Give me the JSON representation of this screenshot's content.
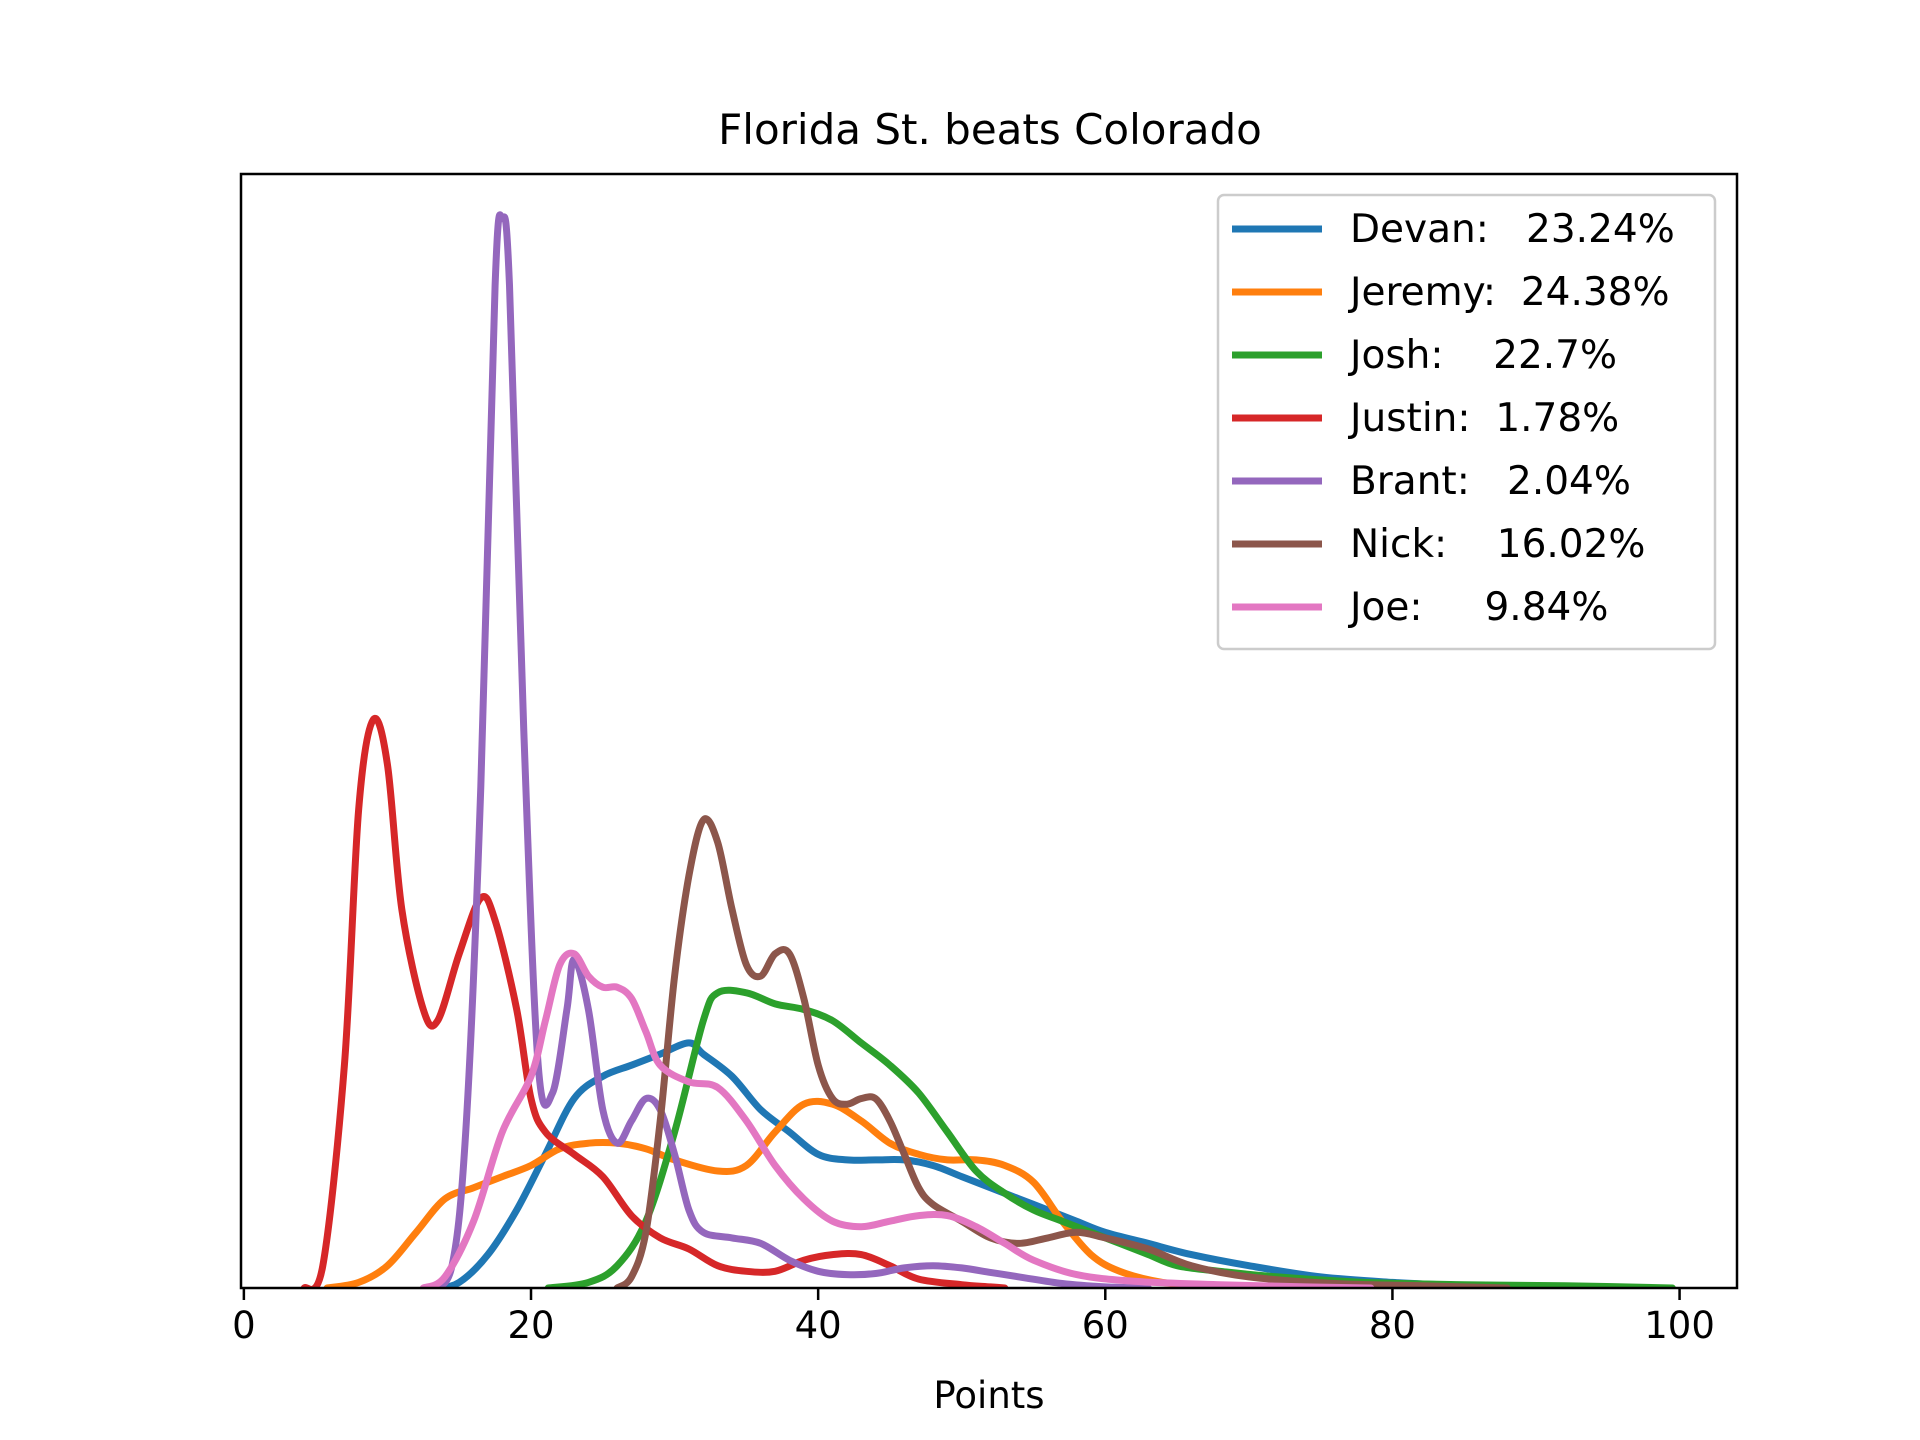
{
  "chart_data": {
    "type": "line",
    "title": "Florida St. beats Colorado",
    "xlabel": "Points",
    "ylabel": "",
    "xlim": [
      -0.2,
      104
    ],
    "ylim": [
      0,
      1
    ],
    "xticks": [
      0,
      20,
      40,
      60,
      80,
      100
    ],
    "yticks_visible": false,
    "grid": false,
    "legend_position": "top-right",
    "series": [
      {
        "name": "Devan:   23.24%",
        "color": "#1f77b4",
        "points": [
          [
            13.5,
            0
          ],
          [
            15,
            0.005
          ],
          [
            17,
            0.03
          ],
          [
            19,
            0.07
          ],
          [
            21,
            0.12
          ],
          [
            23,
            0.17
          ],
          [
            25,
            0.19
          ],
          [
            27,
            0.2
          ],
          [
            29,
            0.21
          ],
          [
            31,
            0.22
          ],
          [
            32,
            0.21
          ],
          [
            34,
            0.19
          ],
          [
            36,
            0.16
          ],
          [
            38,
            0.14
          ],
          [
            40,
            0.12
          ],
          [
            42,
            0.115
          ],
          [
            44,
            0.115
          ],
          [
            46,
            0.115
          ],
          [
            48,
            0.11
          ],
          [
            50,
            0.1
          ],
          [
            52,
            0.09
          ],
          [
            54,
            0.08
          ],
          [
            56,
            0.07
          ],
          [
            58,
            0.06
          ],
          [
            60,
            0.05
          ],
          [
            63,
            0.04
          ],
          [
            66,
            0.03
          ],
          [
            70,
            0.02
          ],
          [
            75,
            0.01
          ],
          [
            80,
            0.005
          ],
          [
            85,
            0.002
          ],
          [
            89,
            0
          ]
        ]
      },
      {
        "name": "Jeremy:  24.38%",
        "color": "#ff7f0e",
        "points": [
          [
            5.8,
            0
          ],
          [
            8,
            0.005
          ],
          [
            10,
            0.02
          ],
          [
            12,
            0.05
          ],
          [
            14,
            0.08
          ],
          [
            16,
            0.09
          ],
          [
            18,
            0.1
          ],
          [
            20,
            0.11
          ],
          [
            22,
            0.125
          ],
          [
            24,
            0.13
          ],
          [
            26,
            0.13
          ],
          [
            28,
            0.125
          ],
          [
            30,
            0.115
          ],
          [
            33,
            0.105
          ],
          [
            35,
            0.11
          ],
          [
            37,
            0.14
          ],
          [
            39,
            0.165
          ],
          [
            41,
            0.165
          ],
          [
            43,
            0.15
          ],
          [
            45,
            0.13
          ],
          [
            47,
            0.12
          ],
          [
            49,
            0.115
          ],
          [
            51,
            0.115
          ],
          [
            53,
            0.11
          ],
          [
            55,
            0.095
          ],
          [
            57,
            0.06
          ],
          [
            59,
            0.03
          ],
          [
            61,
            0.015
          ],
          [
            64,
            0.005
          ],
          [
            68,
            0.001
          ],
          [
            71,
            0
          ]
        ]
      },
      {
        "name": "Josh:    22.7%",
        "color": "#2ca02c",
        "points": [
          [
            21.2,
            0
          ],
          [
            24,
            0.005
          ],
          [
            26,
            0.02
          ],
          [
            28,
            0.06
          ],
          [
            30,
            0.14
          ],
          [
            32,
            0.24
          ],
          [
            33,
            0.265
          ],
          [
            35,
            0.265
          ],
          [
            37,
            0.255
          ],
          [
            39,
            0.25
          ],
          [
            41,
            0.24
          ],
          [
            43,
            0.22
          ],
          [
            45,
            0.2
          ],
          [
            47,
            0.175
          ],
          [
            49,
            0.14
          ],
          [
            51,
            0.105
          ],
          [
            53,
            0.085
          ],
          [
            55,
            0.07
          ],
          [
            57,
            0.06
          ],
          [
            59,
            0.05
          ],
          [
            61,
            0.04
          ],
          [
            63,
            0.03
          ],
          [
            65,
            0.02
          ],
          [
            68,
            0.015
          ],
          [
            72,
            0.01
          ],
          [
            78,
            0.005
          ],
          [
            85,
            0.003
          ],
          [
            92,
            0.002
          ],
          [
            99.5,
            0
          ]
        ]
      },
      {
        "name": "Justin:  1.78%",
        "color": "#d62728",
        "points": [
          [
            4.2,
            0
          ],
          [
            5.5,
            0.02
          ],
          [
            7,
            0.2
          ],
          [
            8,
            0.43
          ],
          [
            9,
            0.51
          ],
          [
            10,
            0.47
          ],
          [
            11,
            0.34
          ],
          [
            12.5,
            0.25
          ],
          [
            13.5,
            0.24
          ],
          [
            15,
            0.3
          ],
          [
            16.5,
            0.35
          ],
          [
            17.5,
            0.33
          ],
          [
            19,
            0.25
          ],
          [
            20,
            0.17
          ],
          [
            21,
            0.14
          ],
          [
            23,
            0.12
          ],
          [
            25,
            0.1
          ],
          [
            27,
            0.065
          ],
          [
            29,
            0.045
          ],
          [
            31,
            0.035
          ],
          [
            33,
            0.02
          ],
          [
            35,
            0.015
          ],
          [
            37,
            0.015
          ],
          [
            39,
            0.025
          ],
          [
            41,
            0.03
          ],
          [
            43,
            0.03
          ],
          [
            45,
            0.02
          ],
          [
            47,
            0.008
          ],
          [
            50,
            0.003
          ],
          [
            52,
            0.001
          ],
          [
            53,
            0
          ]
        ]
      },
      {
        "name": "Brant:   2.04%",
        "color": "#9467bd",
        "points": [
          [
            13,
            0
          ],
          [
            14.5,
            0.02
          ],
          [
            15.5,
            0.15
          ],
          [
            16.5,
            0.45
          ],
          [
            17.5,
            0.9
          ],
          [
            18,
            0.96
          ],
          [
            18.5,
            0.9
          ],
          [
            19.5,
            0.5
          ],
          [
            20.5,
            0.2
          ],
          [
            21.5,
            0.175
          ],
          [
            22.5,
            0.25
          ],
          [
            23,
            0.295
          ],
          [
            24,
            0.25
          ],
          [
            25,
            0.16
          ],
          [
            26,
            0.13
          ],
          [
            27,
            0.15
          ],
          [
            28,
            0.17
          ],
          [
            29,
            0.16
          ],
          [
            30,
            0.12
          ],
          [
            31,
            0.07
          ],
          [
            32,
            0.05
          ],
          [
            34,
            0.045
          ],
          [
            36,
            0.04
          ],
          [
            38,
            0.025
          ],
          [
            40,
            0.015
          ],
          [
            42,
            0.012
          ],
          [
            44,
            0.013
          ],
          [
            46,
            0.018
          ],
          [
            48,
            0.02
          ],
          [
            50,
            0.018
          ],
          [
            52,
            0.014
          ],
          [
            54,
            0.01
          ],
          [
            57,
            0.004
          ],
          [
            60,
            0.001
          ],
          [
            63,
            0
          ]
        ]
      },
      {
        "name": "Nick:    16.02%",
        "color": "#8c564b",
        "points": [
          [
            26,
            0
          ],
          [
            27,
            0.01
          ],
          [
            28,
            0.05
          ],
          [
            29,
            0.15
          ],
          [
            30,
            0.28
          ],
          [
            31,
            0.37
          ],
          [
            32,
            0.42
          ],
          [
            33,
            0.4
          ],
          [
            34,
            0.34
          ],
          [
            35,
            0.29
          ],
          [
            36,
            0.28
          ],
          [
            37,
            0.3
          ],
          [
            38,
            0.3
          ],
          [
            39,
            0.26
          ],
          [
            40,
            0.2
          ],
          [
            41,
            0.17
          ],
          [
            42,
            0.165
          ],
          [
            43,
            0.17
          ],
          [
            44,
            0.17
          ],
          [
            45,
            0.15
          ],
          [
            46,
            0.12
          ],
          [
            47,
            0.09
          ],
          [
            48,
            0.075
          ],
          [
            50,
            0.06
          ],
          [
            52,
            0.045
          ],
          [
            54,
            0.04
          ],
          [
            56,
            0.045
          ],
          [
            58,
            0.05
          ],
          [
            60,
            0.045
          ],
          [
            63,
            0.035
          ],
          [
            66,
            0.02
          ],
          [
            70,
            0.01
          ],
          [
            76,
            0.004
          ],
          [
            82,
            0.002
          ],
          [
            88,
            0
          ]
        ]
      },
      {
        "name": "Joe:     9.84%",
        "color": "#e377c2",
        "points": [
          [
            12.5,
            0
          ],
          [
            14,
            0.01
          ],
          [
            16,
            0.06
          ],
          [
            18,
            0.14
          ],
          [
            20,
            0.19
          ],
          [
            21,
            0.24
          ],
          [
            22,
            0.29
          ],
          [
            23,
            0.3
          ],
          [
            24,
            0.28
          ],
          [
            25,
            0.27
          ],
          [
            26,
            0.27
          ],
          [
            27,
            0.26
          ],
          [
            28,
            0.23
          ],
          [
            29,
            0.2
          ],
          [
            31,
            0.185
          ],
          [
            33,
            0.18
          ],
          [
            35,
            0.15
          ],
          [
            37,
            0.11
          ],
          [
            39,
            0.08
          ],
          [
            41,
            0.06
          ],
          [
            43,
            0.055
          ],
          [
            45,
            0.06
          ],
          [
            47,
            0.065
          ],
          [
            49,
            0.065
          ],
          [
            51,
            0.055
          ],
          [
            53,
            0.04
          ],
          [
            55,
            0.025
          ],
          [
            58,
            0.012
          ],
          [
            62,
            0.006
          ],
          [
            68,
            0.003
          ],
          [
            74,
            0.001
          ],
          [
            78.5,
            0
          ]
        ]
      }
    ]
  }
}
